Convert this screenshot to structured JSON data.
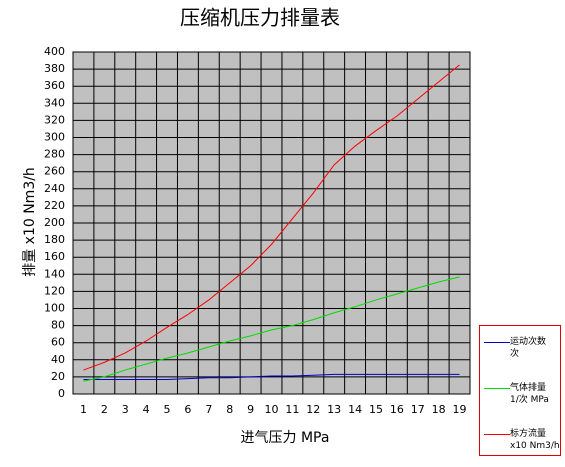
{
  "chart_data": {
    "type": "line",
    "title": "压缩机压力排量表",
    "x_label": "进气压力 MPa",
    "y_label": "排量 x10 Nm3/h",
    "categories": [
      1,
      2,
      3,
      4,
      5,
      6,
      7,
      8,
      9,
      10,
      11,
      12,
      13,
      14,
      15,
      16,
      17,
      18,
      19
    ],
    "ylim": [
      0,
      400
    ],
    "yticks": [
      0,
      20,
      40,
      60,
      80,
      100,
      120,
      140,
      160,
      180,
      200,
      220,
      240,
      260,
      280,
      300,
      320,
      340,
      360,
      380,
      400
    ],
    "grid": true,
    "series": [
      {
        "name": "运动次数\n次",
        "color": "#0000cc",
        "values": [
          17,
          17,
          17,
          17,
          17,
          18,
          19,
          19,
          20,
          21,
          21,
          22,
          23,
          23,
          23,
          23,
          23,
          23,
          23
        ]
      },
      {
        "name": "气体排量\n1/次  MPa",
        "color": "#00dd00",
        "values": [
          15,
          20,
          28,
          35,
          42,
          48,
          55,
          62,
          68,
          75,
          80,
          87,
          95,
          102,
          110,
          117,
          124,
          131,
          137
        ]
      },
      {
        "name": "标方流量\nx10 Nm3/h",
        "color": "#ff0000",
        "values": [
          28,
          37,
          48,
          62,
          78,
          93,
          110,
          130,
          150,
          175,
          205,
          235,
          268,
          290,
          308,
          325,
          345,
          365,
          385
        ]
      }
    ]
  }
}
